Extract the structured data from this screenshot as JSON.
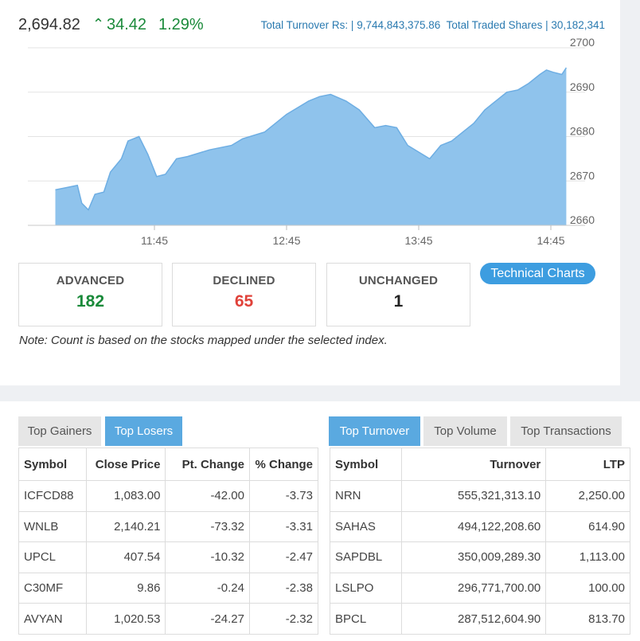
{
  "index": {
    "value": "2,694.82",
    "arrow": "^",
    "change": "34.42",
    "percent": "1.29%"
  },
  "turnover_info": {
    "turnover_label": "Total Turnover Rs: |",
    "turnover_value": "9,744,843,375.86",
    "shares_label": "Total Traded Shares |",
    "shares_value": "30,182,341"
  },
  "chart_data": {
    "type": "area",
    "x_ticks": [
      "11:45",
      "12:45",
      "13:45",
      "14:45"
    ],
    "y_ticks": [
      "2700",
      "2690",
      "2680",
      "2670",
      "2660"
    ],
    "ylim": [
      2660,
      2700
    ],
    "grid": true,
    "x": [
      "11:00",
      "11:05",
      "11:10",
      "11:12",
      "11:15",
      "11:18",
      "11:22",
      "11:25",
      "11:30",
      "11:33",
      "11:38",
      "11:42",
      "11:46",
      "11:50",
      "11:55",
      "12:00",
      "12:10",
      "12:20",
      "12:25",
      "12:35",
      "12:45",
      "12:55",
      "13:00",
      "13:05",
      "13:12",
      "13:18",
      "13:25",
      "13:30",
      "13:35",
      "13:40",
      "13:45",
      "13:50",
      "13:55",
      "14:00",
      "14:05",
      "14:10",
      "14:15",
      "14:20",
      "14:25",
      "14:30",
      "14:35",
      "14:40",
      "14:43",
      "14:46",
      "14:50",
      "14:52"
    ],
    "values": [
      2668,
      2668.5,
      2669,
      2665,
      2663.5,
      2667,
      2667.5,
      2672,
      2675,
      2679,
      2680,
      2676,
      2671,
      2671.5,
      2675,
      2675.5,
      2677,
      2678,
      2679.5,
      2681,
      2685,
      2688,
      2689,
      2689.5,
      2688,
      2686,
      2682,
      2682.5,
      2682,
      2678,
      2676.5,
      2675,
      2678,
      2679,
      2681,
      2683,
      2686,
      2688,
      2690,
      2690.5,
      2692,
      2694,
      2695,
      2694.5,
      2694,
      2695.5
    ]
  },
  "stats": {
    "advanced_label": "ADVANCED",
    "advanced_value": "182",
    "declined_label": "DECLINED",
    "declined_value": "65",
    "unchanged_label": "UNCHANGED",
    "unchanged_value": "1"
  },
  "technical_charts_label": "Technical Charts",
  "note": "Note: Count is based on the stocks mapped under the selected index.",
  "left_tabs": [
    "Top Gainers",
    "Top Losers"
  ],
  "left_table": {
    "headers": [
      "Symbol",
      "Close Price",
      "Pt. Change",
      "% Change"
    ],
    "rows": [
      [
        "ICFCD88",
        "1,083.00",
        "-42.00",
        "-3.73"
      ],
      [
        "WNLB",
        "2,140.21",
        "-73.32",
        "-3.31"
      ],
      [
        "UPCL",
        "407.54",
        "-10.32",
        "-2.47"
      ],
      [
        "C30MF",
        "9.86",
        "-0.24",
        "-2.38"
      ],
      [
        "AVYAN",
        "1,020.53",
        "-24.27",
        "-2.32"
      ]
    ]
  },
  "right_tabs": [
    "Top Turnover",
    "Top Volume",
    "Top Transactions"
  ],
  "right_table": {
    "headers": [
      "Symbol",
      "Turnover",
      "LTP"
    ],
    "rows": [
      [
        "NRN",
        "555,321,313.10",
        "2,250.00"
      ],
      [
        "SAHAS",
        "494,122,208.60",
        "614.90"
      ],
      [
        "SAPDBL",
        "350,009,289.30",
        "1,113.00"
      ],
      [
        "LSLPO",
        "296,771,700.00",
        "100.00"
      ],
      [
        "BPCL",
        "287,512,604.90",
        "813.70"
      ]
    ]
  },
  "colors": {
    "positive": "#1a8a3a",
    "negative": "#e0423a",
    "accent": "#3d9de0",
    "area_fill": "#8fc3ec",
    "area_line": "#6eaee3"
  }
}
